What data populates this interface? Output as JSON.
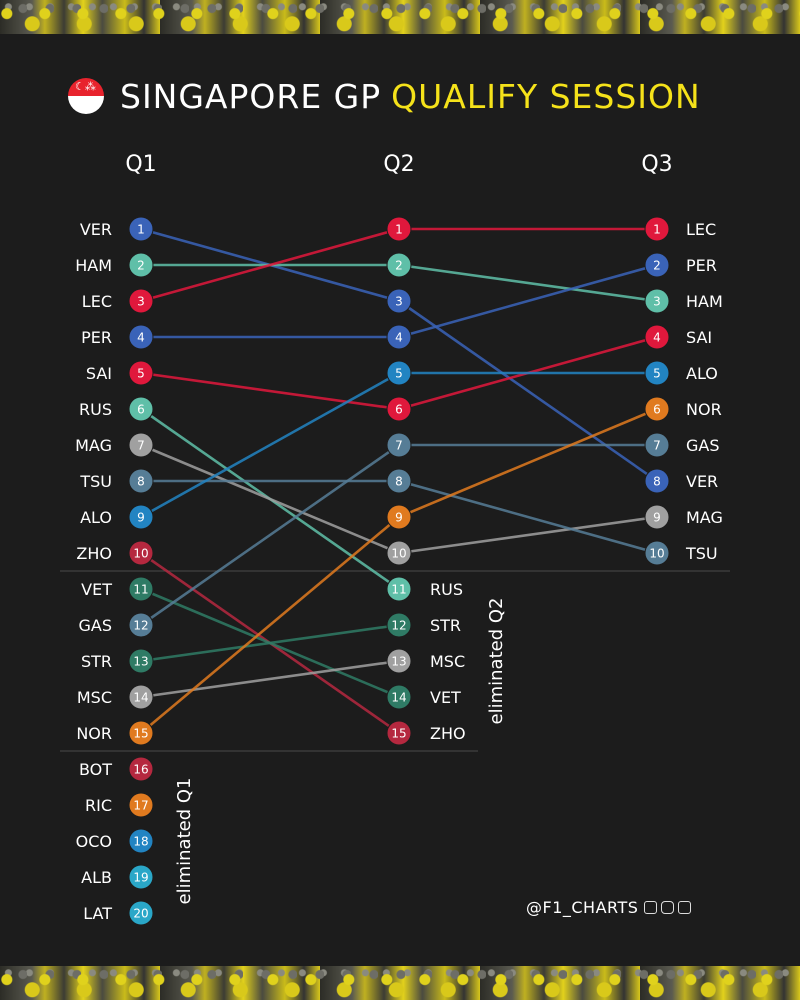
{
  "title": {
    "main": "SINGAPORE GP",
    "accent": "QUALIFY SESSION"
  },
  "footer": {
    "handle": "@F1_CHARTS"
  },
  "colors": {
    "background": "#1c1c1c",
    "accent": "#f5e21a",
    "divider": "#4a4a4a"
  },
  "chart_data": {
    "type": "bump",
    "title": "SINGAPORE GP QUALIFY SESSION",
    "stages": [
      "Q1",
      "Q2",
      "Q3"
    ],
    "eliminated_labels": [
      "eliminated Q1",
      "eliminated Q2"
    ],
    "drivers": [
      {
        "code": "VER",
        "color": "#3a63b8",
        "positions": [
          1,
          3,
          8
        ]
      },
      {
        "code": "HAM",
        "color": "#5fbfa8",
        "positions": [
          2,
          2,
          3
        ]
      },
      {
        "code": "LEC",
        "color": "#e0183c",
        "positions": [
          3,
          1,
          1
        ]
      },
      {
        "code": "PER",
        "color": "#3a63b8",
        "positions": [
          4,
          4,
          2
        ]
      },
      {
        "code": "SAI",
        "color": "#e0183c",
        "positions": [
          5,
          6,
          4
        ]
      },
      {
        "code": "RUS",
        "color": "#5fbfa8",
        "positions": [
          6,
          11,
          null
        ]
      },
      {
        "code": "MAG",
        "color": "#a0a0a0",
        "positions": [
          7,
          10,
          9
        ]
      },
      {
        "code": "TSU",
        "color": "#567d96",
        "positions": [
          8,
          8,
          10
        ]
      },
      {
        "code": "ALO",
        "color": "#2284c2",
        "positions": [
          9,
          5,
          5
        ]
      },
      {
        "code": "ZHO",
        "color": "#b5283f",
        "positions": [
          10,
          15,
          null
        ]
      },
      {
        "code": "VET",
        "color": "#2f7b65",
        "positions": [
          11,
          14,
          null
        ]
      },
      {
        "code": "GAS",
        "color": "#567d96",
        "positions": [
          12,
          7,
          7
        ]
      },
      {
        "code": "STR",
        "color": "#2f7b65",
        "positions": [
          13,
          12,
          null
        ]
      },
      {
        "code": "MSC",
        "color": "#a0a0a0",
        "positions": [
          14,
          13,
          null
        ]
      },
      {
        "code": "NOR",
        "color": "#e07a1f",
        "positions": [
          15,
          9,
          6
        ]
      },
      {
        "code": "BOT",
        "color": "#b5283f",
        "positions": [
          16,
          null,
          null
        ]
      },
      {
        "code": "RIC",
        "color": "#e07a1f",
        "positions": [
          17,
          null,
          null
        ]
      },
      {
        "code": "OCO",
        "color": "#2284c2",
        "positions": [
          18,
          null,
          null
        ]
      },
      {
        "code": "ALB",
        "color": "#2aa7c8",
        "positions": [
          19,
          null,
          null
        ]
      },
      {
        "code": "LAT",
        "color": "#2aa7c8",
        "positions": [
          20,
          null,
          null
        ]
      }
    ]
  }
}
